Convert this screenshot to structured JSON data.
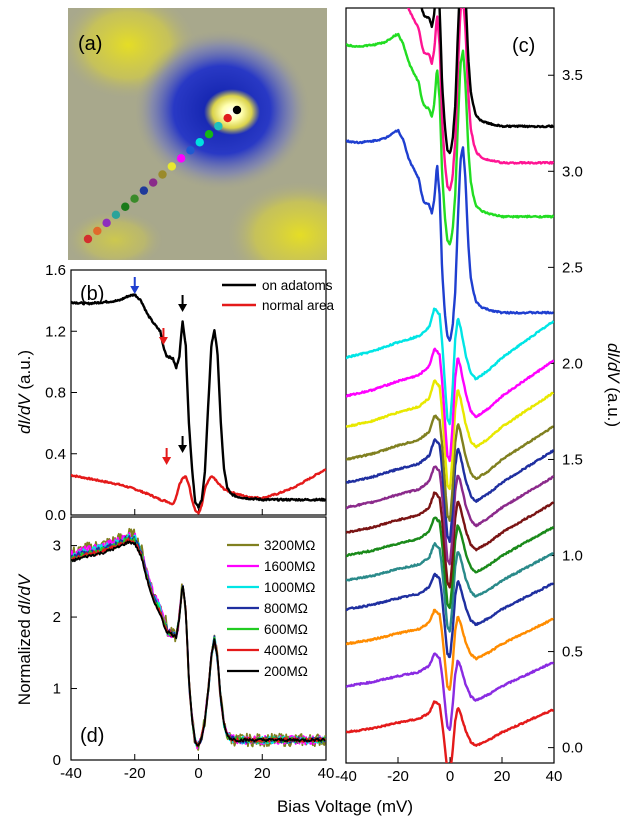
{
  "chart_data": [
    {
      "panel": "(a)",
      "type": "other",
      "colors": {
        "background": "#a8a88c",
        "depression": "#1a2fb8",
        "bright_spot": "#ffffaa",
        "yellow_lobes": "#d9d23a"
      },
      "dots": [
        "#d32f2f",
        "#e06a2b",
        "#8e2ebd",
        "#2ba39a",
        "#1a7a1a",
        "#3a8a2a",
        "#1f3a9a",
        "#8a2a8a",
        "#9a8a2a",
        "#e8e830",
        "#ff00ff",
        "#1f5ad0",
        "#00e0e0",
        "#14b814",
        "#1fbfbf",
        "#e01e1e",
        "#000000"
      ]
    },
    {
      "panel": "(b)",
      "type": "line",
      "ylabel_parts": [
        "dI/dV",
        " (a.u.)"
      ],
      "xlim": [
        -40,
        40
      ],
      "ylim": [
        0,
        1.6
      ],
      "yticks": [
        "0.0",
        "0.4",
        "0.8",
        "1.2",
        "1.6"
      ],
      "series": [
        {
          "name": "on adatoms",
          "color": "#000000",
          "x": [
            -40,
            -35,
            -30,
            -25,
            -22,
            -20,
            -18,
            -16,
            -14,
            -12,
            -11,
            -10,
            -9,
            -8,
            -7,
            -6,
            -5,
            -4,
            -3,
            -2,
            -1,
            0,
            1,
            2,
            3,
            4,
            5,
            6,
            7,
            8,
            9,
            10,
            12,
            15,
            20,
            25,
            30,
            35,
            40
          ],
          "y": [
            1.39,
            1.38,
            1.39,
            1.4,
            1.43,
            1.44,
            1.4,
            1.31,
            1.25,
            1.2,
            1.1,
            1.04,
            1.03,
            1.02,
            0.96,
            1.04,
            1.27,
            1.1,
            0.6,
            0.3,
            0.08,
            0.05,
            0.1,
            0.28,
            0.7,
            1.1,
            1.21,
            1.05,
            0.6,
            0.3,
            0.18,
            0.14,
            0.12,
            0.11,
            0.1,
            0.1,
            0.1,
            0.1,
            0.1
          ]
        },
        {
          "name": "normal area",
          "color": "#e41a1a",
          "x": [
            -40,
            -35,
            -30,
            -25,
            -20,
            -15,
            -12,
            -10,
            -9,
            -8,
            -7,
            -6,
            -5,
            -4,
            -3,
            -2,
            -1,
            0,
            1,
            2,
            3,
            4,
            5,
            6,
            8,
            10,
            15,
            20,
            25,
            30,
            35,
            40
          ],
          "y": [
            0.26,
            0.24,
            0.22,
            0.2,
            0.17,
            0.13,
            0.1,
            0.09,
            0.08,
            0.07,
            0.12,
            0.2,
            0.24,
            0.25,
            0.2,
            0.1,
            0.03,
            0.01,
            0.06,
            0.17,
            0.22,
            0.25,
            0.24,
            0.21,
            0.17,
            0.15,
            0.12,
            0.11,
            0.14,
            0.18,
            0.24,
            0.3
          ]
        }
      ],
      "arrows": [
        {
          "color": "#1f3fd0",
          "at": "top",
          "x": -20
        },
        {
          "color": "#e41a1a",
          "at": "top",
          "x": -11
        },
        {
          "color": "#000000",
          "at": "top",
          "x": -5
        },
        {
          "color": "#e41a1a",
          "at": "bottom",
          "x": -10
        },
        {
          "color": "#000000",
          "at": "bottom",
          "x": -5
        }
      ]
    },
    {
      "panel": "(d)",
      "type": "line",
      "ylabel_parts": [
        "Normalized ",
        "dI/dV"
      ],
      "xlabel": "Bias Voltage (mV)",
      "xlim": [
        -40,
        40
      ],
      "ylim": [
        0,
        3.4
      ],
      "xticks": [
        "-40",
        "-20",
        "0",
        "20",
        "40"
      ],
      "yticks": [
        "0",
        "1",
        "2",
        "3"
      ],
      "base_curve": {
        "x": [
          -40,
          -35,
          -30,
          -25,
          -22,
          -20,
          -18,
          -16,
          -14,
          -12,
          -11,
          -10,
          -9,
          -8,
          -7,
          -6,
          -5,
          -4,
          -3,
          -2,
          -1,
          0,
          1,
          2,
          3,
          4,
          5,
          6,
          7,
          8,
          9,
          10,
          12,
          15,
          20,
          25,
          30,
          35,
          40
        ],
        "y": [
          2.78,
          2.85,
          2.9,
          2.98,
          3.05,
          3.03,
          2.85,
          2.5,
          2.2,
          2.05,
          1.9,
          1.8,
          1.78,
          1.75,
          1.72,
          2.0,
          2.48,
          2.1,
          1.1,
          0.55,
          0.25,
          0.2,
          0.32,
          0.55,
          0.95,
          1.45,
          1.7,
          1.4,
          0.85,
          0.5,
          0.35,
          0.3,
          0.28,
          0.28,
          0.28,
          0.28,
          0.28,
          0.28,
          0.29
        ]
      },
      "series": [
        {
          "name": "3200MΩ",
          "color": "#808020",
          "noise": 0.09
        },
        {
          "name": "1600MΩ",
          "color": "#ff00ff",
          "noise": 0.06
        },
        {
          "name": "1000MΩ",
          "color": "#00e5e5",
          "noise": 0.05
        },
        {
          "name": "800MΩ",
          "color": "#1f2fa0",
          "noise": 0.04
        },
        {
          "name": "600MΩ",
          "color": "#22cc22",
          "noise": 0.035
        },
        {
          "name": "400MΩ",
          "color": "#e41a1a",
          "noise": 0.03
        },
        {
          "name": "200MΩ",
          "color": "#000000",
          "noise": 0.02
        }
      ]
    },
    {
      "panel": "(c)",
      "type": "line",
      "ylabel_parts": [
        "dI/dV",
        " (a.u.)"
      ],
      "xlim": [
        -40,
        40
      ],
      "ylim": [
        -0.08,
        3.85
      ],
      "xticks": [
        "-40",
        "-20",
        "0",
        "20",
        "40"
      ],
      "yticks": [
        "0.0",
        "0.5",
        "1.0",
        "1.5",
        "2.0",
        "2.5",
        "3.0",
        "3.5"
      ],
      "spectra_bottom_to_top": [
        {
          "color": "#e41a1a",
          "base": 0.08
        },
        {
          "color": "#8a2be2",
          "base": 0.32
        },
        {
          "color": "#ff8c00",
          "base": 0.54
        },
        {
          "color": "#1f2fa0",
          "base": 0.72
        },
        {
          "color": "#2a8a8a",
          "base": 0.87
        },
        {
          "color": "#1a8a1a",
          "base": 1.0
        },
        {
          "color": "#7a1414",
          "base": 1.12
        },
        {
          "color": "#8b2a8b",
          "base": 1.25
        },
        {
          "color": "#1f2fa0",
          "base": 1.38
        },
        {
          "color": "#808020",
          "base": 1.5
        },
        {
          "color": "#e8e800",
          "base": 1.67
        },
        {
          "color": "#ff00ff",
          "base": 1.83
        },
        {
          "color": "#00e5e5",
          "base": 2.03
        },
        {
          "color": "#1f3fd0",
          "base": 2.48,
          "kind": "adatom"
        },
        {
          "color": "#22dd22",
          "base": 2.98,
          "kind": "adatom"
        },
        {
          "color": "#ff1493",
          "base": 3.26,
          "kind": "adatom"
        },
        {
          "color": "#000000",
          "base": 3.45,
          "kind": "adatom"
        }
      ]
    }
  ]
}
